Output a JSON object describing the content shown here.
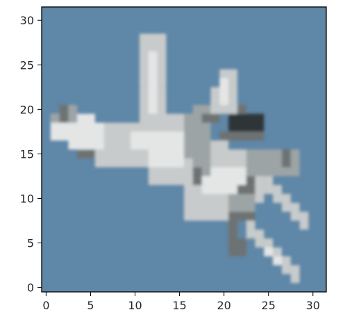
{
  "chart_data": {
    "type": "heatmap",
    "title": "",
    "xlabel": "",
    "ylabel": "",
    "grid": false,
    "image_size": [
      32,
      32
    ],
    "xlim": [
      -0.5,
      31.5
    ],
    "ylim": [
      31.5,
      -0.5
    ],
    "x_ticks": [
      0,
      5,
      10,
      15,
      20,
      25,
      30
    ],
    "y_ticks": [
      0,
      5,
      10,
      15,
      20,
      25,
      30
    ],
    "x_tick_labels": [
      "0",
      "5",
      "10",
      "15",
      "20",
      "25",
      "30"
    ],
    "y_tick_labels": [
      "0",
      "5",
      "10",
      "15",
      "20",
      "25",
      "30"
    ],
    "background_color": "#5f87a7",
    "colors": {
      "sky": "#5f87a7",
      "white": "#e4e6e6",
      "light": "#c8cbcb",
      "mid": "#9da4a6",
      "dark": "#6d7272",
      "black": "#2f3438"
    },
    "regions": [
      {
        "name": "fuselage",
        "color": "light",
        "cells": [
          [
            6,
            14,
            12,
            19
          ],
          [
            12,
            12,
            17,
            20
          ],
          [
            17,
            11,
            21,
            17
          ]
        ]
      },
      {
        "name": "nose",
        "color": "white",
        "cells": [
          [
            1,
            17,
            6,
            20
          ],
          [
            3,
            16,
            7,
            19
          ]
        ]
      },
      {
        "name": "nose-shadow",
        "color": "mid",
        "cells": [
          [
            1,
            19,
            4,
            20
          ],
          [
            2,
            20,
            4,
            21
          ]
        ]
      },
      {
        "name": "nose-dark",
        "color": "dark",
        "cells": [
          [
            4,
            15,
            6,
            16
          ],
          [
            2,
            19,
            3,
            21
          ]
        ]
      },
      {
        "name": "body-highlight",
        "color": "white",
        "cells": [
          [
            10,
            16,
            17,
            18
          ],
          [
            12,
            14,
            16,
            16
          ]
        ]
      },
      {
        "name": "main-wing",
        "color": "light",
        "cells": [
          [
            11,
            19,
            14,
            23
          ],
          [
            11,
            23,
            14,
            29
          ]
        ]
      },
      {
        "name": "main-wing-highlight",
        "color": "white",
        "cells": [
          [
            12,
            20,
            13,
            27
          ]
        ]
      },
      {
        "name": "upper-wing",
        "color": "light",
        "cells": [
          [
            16,
            8,
            22,
            13
          ],
          [
            17,
            10,
            25,
            16
          ]
        ]
      },
      {
        "name": "upper-wing-highlight",
        "color": "white",
        "cells": [
          [
            18,
            11,
            23,
            14
          ]
        ]
      },
      {
        "name": "wing-root-shadow",
        "color": "mid",
        "cells": [
          [
            17,
            13,
            19,
            21
          ],
          [
            16,
            15,
            18,
            20
          ]
        ]
      },
      {
        "name": "wing-root-dark",
        "color": "dark",
        "cells": [
          [
            17,
            12,
            18,
            14
          ],
          [
            18,
            19,
            20,
            20
          ]
        ]
      },
      {
        "name": "tail-fin-upper",
        "color": "light",
        "cells": [
          [
            28,
            1,
            29,
            3
          ],
          [
            27,
            2,
            28,
            4
          ],
          [
            26,
            3,
            27,
            5
          ],
          [
            25,
            4,
            26,
            6
          ],
          [
            24,
            5,
            25,
            7
          ],
          [
            23,
            6,
            24,
            8
          ]
        ]
      },
      {
        "name": "tail-fin-upper-highlight",
        "color": "white",
        "cells": [
          [
            26,
            3,
            27,
            4
          ],
          [
            25,
            4,
            26,
            5
          ]
        ]
      },
      {
        "name": "tail-fin-lower",
        "color": "light",
        "cells": [
          [
            29,
            7,
            30,
            9
          ],
          [
            28,
            8,
            29,
            10
          ],
          [
            27,
            9,
            28,
            11
          ],
          [
            26,
            10,
            27,
            12
          ],
          [
            25,
            11,
            26,
            13
          ]
        ]
      },
      {
        "name": "tail-dark",
        "color": "dark",
        "cells": [
          [
            21,
            4,
            23,
            6
          ],
          [
            21,
            6,
            22,
            9
          ],
          [
            22,
            8,
            24,
            12
          ],
          [
            23,
            11,
            24,
            13
          ]
        ]
      },
      {
        "name": "tail-mid",
        "color": "mid",
        "cells": [
          [
            21,
            9,
            24,
            11
          ],
          [
            23,
            13,
            27,
            16
          ],
          [
            27,
            13,
            29,
            16
          ]
        ]
      },
      {
        "name": "exhaust",
        "color": "black",
        "cells": [
          [
            21,
            18,
            25,
            20
          ]
        ]
      },
      {
        "name": "exhaust-frame",
        "color": "dark",
        "cells": [
          [
            20,
            17,
            25,
            18
          ],
          [
            20,
            20,
            23,
            21
          ]
        ]
      },
      {
        "name": "lower-fin",
        "color": "light",
        "cells": [
          [
            19,
            20,
            22,
            23
          ],
          [
            20,
            23,
            22,
            25
          ]
        ]
      },
      {
        "name": "lower-fin-highlight",
        "color": "white",
        "cells": [
          [
            20,
            21,
            21,
            24
          ]
        ]
      },
      {
        "name": "right-engine",
        "color": "dark",
        "cells": [
          [
            27,
            14,
            28,
            16
          ]
        ]
      }
    ]
  }
}
